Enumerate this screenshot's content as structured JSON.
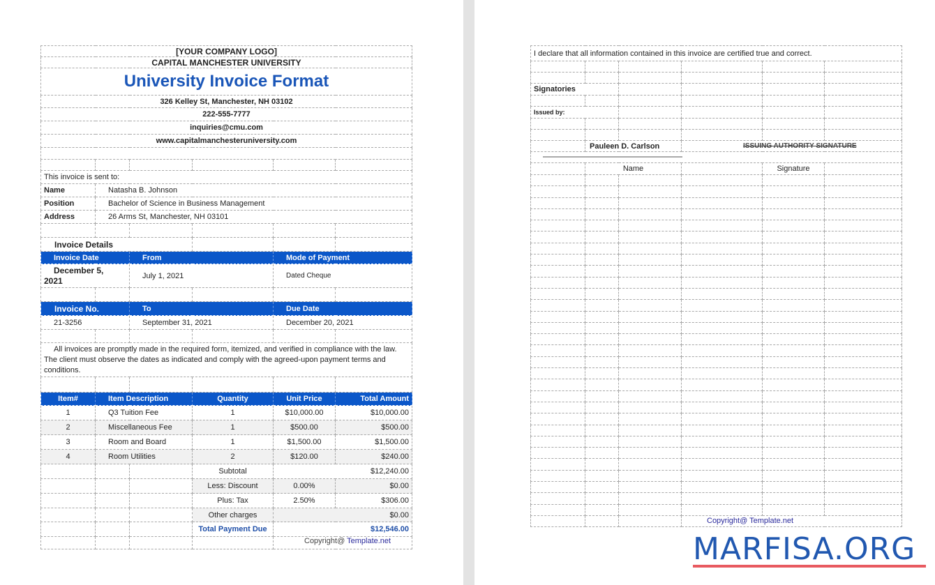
{
  "header": {
    "logo": "[YOUR COMPANY LOGO]",
    "university": "CAPITAL MANCHESTER UNIVERSITY",
    "title": "University Invoice Format",
    "address": "326 Kelley St, Manchester, NH 03102",
    "phone": "222-555-7777",
    "email": "inquiries@cmu.com",
    "website": "www.capitalmanchesteruniversity.com"
  },
  "recipient": {
    "intro": "This invoice is sent to:",
    "name_label": "Name",
    "name": "Natasha B. Johnson",
    "position_label": "Position",
    "position": "Bachelor of Science in Business Management",
    "address_label": "Address",
    "address": "26 Arms St, Manchester, NH 03101"
  },
  "details": {
    "title": "Invoice Details",
    "h1": [
      "Invoice Date",
      "From",
      "Mode of Payment"
    ],
    "r1": [
      "December 5, 2021",
      "July 1, 2021",
      "Dated Cheque"
    ],
    "h2": [
      "Invoice No.",
      "To",
      "Due Date"
    ],
    "r2": [
      "21-3256",
      "September 31, 2021",
      "December 20, 2021"
    ]
  },
  "terms": "All invoices are promptly made in the required form, itemized, and verified in compliance with the law. The client must observe the dates as indicated and comply with the agreed-upon payment terms and conditions.",
  "items": {
    "headers": [
      "Item#",
      "Item Description",
      "Quantity",
      "Unit Price",
      "Total Amount"
    ],
    "rows": [
      [
        "1",
        "Q3 Tuition Fee",
        "1",
        "$10,000.00",
        "$10,000.00"
      ],
      [
        "2",
        "Miscellaneous Fee",
        "1",
        "$500.00",
        "$500.00"
      ],
      [
        "3",
        "Room and Board",
        "1",
        "$1,500.00",
        "$1,500.00"
      ],
      [
        "4",
        "Room Utilities",
        "2",
        "$120.00",
        "$240.00"
      ]
    ]
  },
  "totals": {
    "subtotal_label": "Subtotal",
    "subtotal": "$12,240.00",
    "discount_label": "Less: Discount",
    "discount_rate": "0.00%",
    "discount": "$0.00",
    "tax_label": "Plus: Tax",
    "tax_rate": "2.50%",
    "tax": "$306.00",
    "other_label": "Other charges",
    "other": "$0.00",
    "total_label": "Total Payment Due",
    "total": "$12,546.00"
  },
  "copyright": {
    "prefix": "Copyright@ ",
    "brand": "Template.net"
  },
  "page2": {
    "declaration": "I declare that all information contained in this invoice are certified true and correct.",
    "signatories": "Signatories",
    "issued_by": "Issued by:",
    "signer_name": "Pauleen D. Carlson",
    "signature_caption": "ISSUING AUTHORITY SIGNATURE",
    "name_label": "Name",
    "signature_label": "Signature"
  },
  "watermark": "MARFISA.ORG",
  "colors": {
    "accent": "#0b57c9",
    "title": "#1a56b8",
    "watermark": "#2158b0",
    "watermark_bar": "#e85a60"
  }
}
